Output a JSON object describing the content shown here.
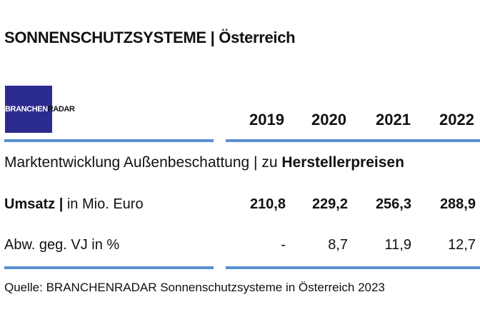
{
  "title": "SONNENSCHUTZSYSTEME | Österreich",
  "logo": {
    "text_white": "BRANCHEN",
    "text_dark": "RADAR",
    "bg_color": "#2b2b8f"
  },
  "years": [
    "2019",
    "2020",
    "2021",
    "2022"
  ],
  "section": {
    "prefix": "Marktentwicklung Außenbeschattung | zu ",
    "bold": "Herstellerpreisen"
  },
  "rows": [
    {
      "label_bold": "Umsatz |",
      "label_rest": " in Mio. Euro",
      "values": [
        "210,8",
        "229,2",
        "256,3",
        "288,9"
      ]
    },
    {
      "label": "Abw. geg. VJ in %",
      "values": [
        "-",
        "8,7",
        "11,9",
        "12,7"
      ]
    }
  ],
  "source": "Quelle: BRANCHENRADAR Sonnenschutzsysteme in Österreich 2023",
  "colors": {
    "rule": "#5b8fd0"
  }
}
